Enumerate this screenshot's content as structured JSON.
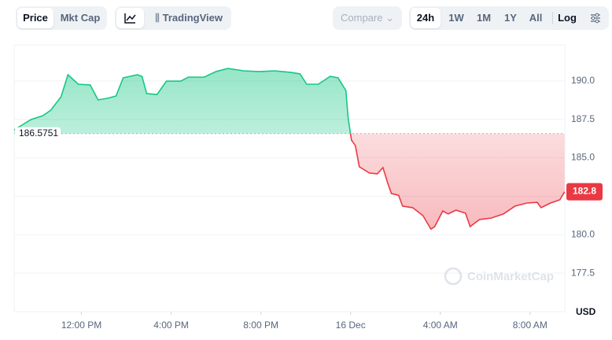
{
  "toolbar": {
    "display": [
      "Price",
      "Mkt Cap"
    ],
    "active_display": 0,
    "chart_type": "TradingView",
    "compare": "Compare",
    "ranges": [
      "24h",
      "1W",
      "1M",
      "1Y",
      "All"
    ],
    "active_range": 0,
    "log": "Log"
  },
  "chart_data": {
    "type": "line",
    "x": [
      9.0,
      9.4,
      9.75,
      10.28,
      10.63,
      11.09,
      11.4,
      11.86,
      12.39,
      12.74,
      13.16,
      13.54,
      13.86,
      14.49,
      14.7,
      14.91,
      15.37,
      15.79,
      16.42,
      16.77,
      17.47,
      18.0,
      18.53,
      19.23,
      19.93,
      20.63,
      21.33,
      21.75,
      22.04,
      22.56,
      23.09,
      23.44,
      23.79,
      23.89,
      24.04,
      24.21,
      24.39,
      24.84,
      25.19,
      25.44,
      25.65,
      25.82,
      26.14,
      26.32,
      26.77,
      27.23,
      27.58,
      27.75,
      28.11,
      28.35,
      28.7,
      29.12,
      29.33,
      29.75,
      30.28,
      30.81,
      31.33,
      31.86,
      32.32,
      32.49,
      32.91,
      33.33,
      33.54
    ],
    "series": [
      {
        "values": [
          186.82,
          187.18,
          187.49,
          187.74,
          188.1,
          188.97,
          190.4,
          189.79,
          189.74,
          188.77,
          188.87,
          189.02,
          190.2,
          190.4,
          190.3,
          189.18,
          189.12,
          189.99,
          189.99,
          190.25,
          190.25,
          190.61,
          190.81,
          190.66,
          190.61,
          190.66,
          190.56,
          190.46,
          189.79,
          189.79,
          190.3,
          190.2,
          189.38,
          187.59,
          186.16,
          185.8,
          184.42,
          184.01,
          183.96,
          184.37,
          183.39,
          182.68,
          182.57,
          181.86,
          181.76,
          181.24,
          180.37,
          180.53,
          181.55,
          181.35,
          181.6,
          181.4,
          180.53,
          180.99,
          181.09,
          181.35,
          181.86,
          182.06,
          182.11,
          181.76,
          182.06,
          182.27,
          182.8
        ]
      }
    ],
    "colors": {
      "above": "#16c784",
      "below": "#ea3943"
    },
    "baseline": 186.5751,
    "xlim": [
      9,
      33.55
    ],
    "xticks": [
      {
        "value": 12,
        "label": "12:00 PM"
      },
      {
        "value": 16,
        "label": "4:00 PM"
      },
      {
        "value": 20,
        "label": "8:00 PM"
      },
      {
        "value": 24,
        "label": "16 Dec"
      },
      {
        "value": 28,
        "label": "4:00 AM"
      },
      {
        "value": 32,
        "label": "8:00 AM"
      }
    ],
    "ylim": [
      175,
      192.5
    ],
    "yticks": [
      177.5,
      {
        "value": 180,
        "label": "180.0"
      },
      182.5,
      {
        "value": 185,
        "label": "185.0"
      },
      187.5,
      {
        "value": 190,
        "label": "190.0"
      }
    ],
    "y_label": "USD",
    "watermark": "CoinMarketCap",
    "grid": true
  }
}
